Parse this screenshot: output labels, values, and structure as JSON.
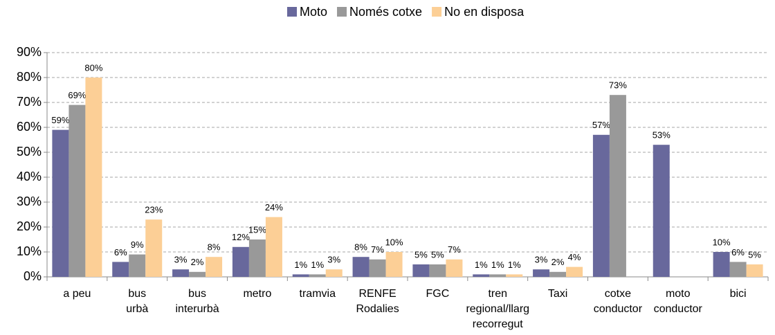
{
  "chart_data": {
    "type": "bar",
    "categories": [
      "a peu",
      "bus\nurbà",
      "bus\ninterurbà",
      "metro",
      "tramvia",
      "RENFE\nRodalies",
      "FGC",
      "tren\nregional/llarg\nrecorregut",
      "Taxi",
      "cotxe\nconductor",
      "moto\nconductor",
      "bici"
    ],
    "series": [
      {
        "name": "Moto",
        "color": "#68689c",
        "values": [
          59,
          6,
          3,
          12,
          1,
          8,
          5,
          1,
          3,
          57,
          53,
          10
        ],
        "value_labels": [
          "59%",
          "6%",
          "3%",
          "12%",
          "1%",
          "8%",
          "5%",
          "1%",
          "3%",
          "57%",
          "53%",
          "10%"
        ]
      },
      {
        "name": "Només cotxe",
        "color": "#999999",
        "values": [
          69,
          9,
          2,
          15,
          1,
          7,
          5,
          1,
          2,
          73,
          null,
          6
        ],
        "value_labels": [
          "69%",
          "9%",
          "2%",
          "15%",
          "1%",
          "7%",
          "5%",
          "1%",
          "2%",
          "73%",
          null,
          "6%"
        ]
      },
      {
        "name": "No en disposa",
        "color": "#fccf96",
        "values": [
          80,
          23,
          8,
          24,
          3,
          10,
          7,
          1,
          4,
          null,
          null,
          5
        ],
        "value_labels": [
          "80%",
          "23%",
          "8%",
          "24%",
          "3%",
          "10%",
          "7%",
          "1%",
          "4%",
          null,
          null,
          "5%"
        ]
      }
    ],
    "ylim": [
      0,
      90
    ],
    "yticks": [
      {
        "value": 0,
        "label": "0%"
      },
      {
        "value": 10,
        "label": "10%"
      },
      {
        "value": 20,
        "label": "20%"
      },
      {
        "value": 30,
        "label": "30%"
      },
      {
        "value": 40,
        "label": "40%"
      },
      {
        "value": 50,
        "label": "50%"
      },
      {
        "value": 60,
        "label": "60%"
      },
      {
        "value": 70,
        "label": "70%"
      },
      {
        "value": 80,
        "label": "80%"
      },
      {
        "value": 90,
        "label": "90%"
      }
    ],
    "grid": true,
    "legend": "top"
  }
}
